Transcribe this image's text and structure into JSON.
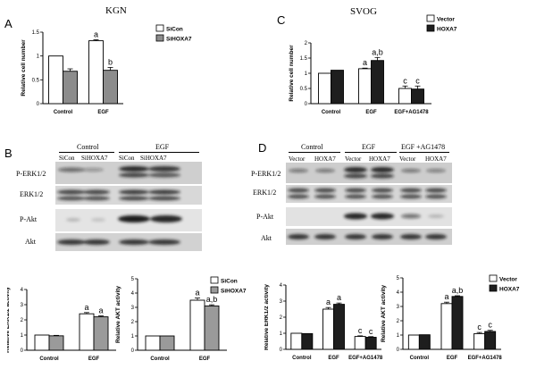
{
  "panels": {
    "A": {
      "letter": "A",
      "title": "KGN"
    },
    "B": {
      "letter": "B"
    },
    "C": {
      "letter": "C",
      "title": "SVOG"
    },
    "D": {
      "letter": "D"
    }
  },
  "blotB": {
    "groups": [
      "Control",
      "EGF"
    ],
    "lanes": [
      "SiCon",
      "SiHOXA7",
      "SiCon",
      "SiHOXA7"
    ],
    "rows": [
      "P-ERK1/2",
      "ERK1/2",
      "P-Akt",
      "Akt"
    ]
  },
  "blotD": {
    "groups": [
      "Control",
      "EGF",
      "EGF +AG1478"
    ],
    "lanes": [
      "Vector",
      "HOXA7",
      "Vector",
      "HOXA7",
      "Vector",
      "HOXA7"
    ],
    "rows": [
      "P-ERK1/2",
      "ERK1/2",
      "P-Akt",
      "Akt"
    ]
  },
  "chart_data": [
    {
      "id": "A",
      "type": "bar",
      "categories": [
        "Control",
        "EGF"
      ],
      "series": [
        {
          "name": "SiCon",
          "values": [
            1.0,
            1.32
          ],
          "err": [
            0,
            0.02
          ],
          "color": "#ffffff"
        },
        {
          "name": "SiHOXA7",
          "values": [
            0.68,
            0.7
          ],
          "err": [
            0.05,
            0.06
          ],
          "color": "#8c8c8c"
        }
      ],
      "ylabel": "Relative cell number",
      "ylim": [
        0,
        1.5
      ],
      "yticks": [
        0,
        0.5,
        1.0,
        1.5
      ],
      "annotations": [
        [
          "",
          "a"
        ],
        [
          "",
          "b"
        ]
      ]
    },
    {
      "id": "C",
      "type": "bar",
      "categories": [
        "Control",
        "EGF",
        "EGF+AG1478"
      ],
      "series": [
        {
          "name": "Vector",
          "values": [
            1.0,
            1.15,
            0.5
          ],
          "err": [
            0,
            0.02,
            0.08
          ],
          "color": "#ffffff"
        },
        {
          "name": "HOXA7",
          "values": [
            1.1,
            1.42,
            0.48
          ],
          "err": [
            0,
            0.1,
            0.1
          ],
          "color": "#1e1e1e"
        }
      ],
      "ylabel": "Relative cell number",
      "ylim": [
        0,
        2.0
      ],
      "yticks": [
        0.0,
        0.5,
        1.0,
        1.5,
        2.0
      ],
      "annotations": [
        [
          "",
          "a",
          "c"
        ],
        [
          "",
          "a,b",
          "c"
        ]
      ]
    },
    {
      "id": "B1",
      "type": "bar",
      "categories": [
        "Control",
        "EGF"
      ],
      "series": [
        {
          "name": "SiCon",
          "values": [
            1.0,
            2.4
          ],
          "err": [
            0,
            0.08
          ],
          "color": "#ffffff"
        },
        {
          "name": "SiHOXA7",
          "values": [
            0.95,
            2.2
          ],
          "err": [
            0.03,
            0.06
          ],
          "color": "#9a9a9a"
        }
      ],
      "ylabel": "Relative ERK1/2 activity",
      "ylim": [
        0,
        4
      ],
      "yticks": [
        0,
        1,
        2,
        3,
        4
      ],
      "annotations": [
        [
          "",
          "a"
        ],
        [
          "",
          "a"
        ]
      ]
    },
    {
      "id": "B2",
      "type": "bar",
      "categories": [
        "Control",
        "EGF"
      ],
      "series": [
        {
          "name": "SiCon",
          "values": [
            1.0,
            3.5
          ],
          "err": [
            0,
            0.15
          ],
          "color": "#ffffff"
        },
        {
          "name": "SiHOXA7",
          "values": [
            1.0,
            3.1
          ],
          "err": [
            0,
            0.08
          ],
          "color": "#9a9a9a"
        }
      ],
      "ylabel": "Relative AKT activity",
      "ylim": [
        0,
        5
      ],
      "yticks": [
        0,
        1,
        2,
        3,
        4,
        5
      ],
      "annotations": [
        [
          "",
          "a"
        ],
        [
          "",
          "a,b"
        ]
      ]
    },
    {
      "id": "D1",
      "type": "bar",
      "categories": [
        "Control",
        "EGF",
        "EGF+AG1478"
      ],
      "series": [
        {
          "name": "Vector",
          "values": [
            1.0,
            2.5,
            0.8
          ],
          "err": [
            0,
            0.1,
            0.04
          ],
          "color": "#ffffff"
        },
        {
          "name": "HOXA7",
          "values": [
            0.98,
            2.8,
            0.75
          ],
          "err": [
            0,
            0.08,
            0.04
          ],
          "color": "#1e1e1e"
        }
      ],
      "ylabel": "Relative ERK1/2 activity",
      "ylim": [
        0,
        4
      ],
      "yticks": [
        0,
        1,
        2,
        3,
        4
      ],
      "annotations": [
        [
          "",
          "a",
          "c"
        ],
        [
          "",
          "a",
          "c"
        ]
      ]
    },
    {
      "id": "D2",
      "type": "bar",
      "categories": [
        "Control",
        "EGF",
        "EGF+AG1478"
      ],
      "series": [
        {
          "name": "Vector",
          "values": [
            1.0,
            3.2,
            1.1
          ],
          "err": [
            0,
            0.1,
            0.08
          ],
          "color": "#ffffff"
        },
        {
          "name": "HOXA7",
          "values": [
            1.02,
            3.7,
            1.25
          ],
          "err": [
            0,
            0.05,
            0.08
          ],
          "color": "#1e1e1e"
        }
      ],
      "ylabel": "Relative AKT activity",
      "ylim": [
        0,
        5
      ],
      "yticks": [
        0,
        1,
        2,
        3,
        4,
        5
      ],
      "annotations": [
        [
          "",
          "a",
          "c"
        ],
        [
          "",
          "a,b",
          "c"
        ]
      ]
    }
  ]
}
